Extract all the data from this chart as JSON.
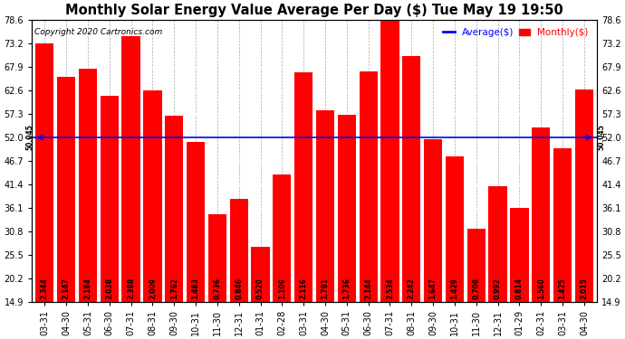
{
  "title": "Monthly Solar Energy Value Average Per Day ($) Tue May 19 19:50",
  "copyright": "Copyright 2020 Cartronics.com",
  "average_label": "Average($)",
  "monthly_label": "Monthly($)",
  "average_value": 50.045,
  "average_line_color": "#0000ff",
  "bar_color": "#ff0000",
  "categories": [
    "03-31",
    "04-30",
    "05-31",
    "06-30",
    "07-31",
    "08-31",
    "09-30",
    "10-31",
    "11-30",
    "12-31",
    "01-31",
    "02-28",
    "03-31",
    "04-30",
    "05-31",
    "06-30",
    "07-31",
    "08-31",
    "09-30",
    "10-31",
    "11-30",
    "12-31",
    "01-29",
    "02-31",
    "03-31",
    "04-30"
  ],
  "bar_labels": [
    "2.344",
    "2.147",
    "2.184",
    "2.038",
    "2.388",
    "2.009",
    "1.762",
    "1.483",
    "0.736",
    "0.846",
    "0.520",
    "1.106",
    "2.116",
    "1.791",
    "1.736",
    "2.144",
    "2.534",
    "2.242",
    "1.647",
    "1.429",
    "0.709",
    "0.992",
    "0.814",
    "1.560",
    "1.425",
    "2.015"
  ],
  "bar_heights": [
    73.2,
    65.7,
    67.5,
    61.4,
    74.8,
    62.6,
    56.8,
    51.0,
    34.7,
    38.0,
    27.3,
    43.7,
    66.7,
    58.2,
    57.0,
    66.8,
    79.6,
    70.3,
    51.6,
    47.7,
    31.3,
    41.0,
    36.0,
    54.2,
    49.6,
    62.9
  ],
  "ylim": [
    14.9,
    78.6
  ],
  "yticks": [
    14.9,
    20.2,
    25.5,
    30.8,
    36.1,
    41.4,
    46.7,
    52.0,
    57.3,
    62.6,
    67.9,
    73.2,
    78.6
  ],
  "background_color": "#ffffff",
  "grid_color": "#aaaaaa",
  "title_fontsize": 10.5,
  "tick_fontsize": 7,
  "bar_label_fontsize": 5.5
}
